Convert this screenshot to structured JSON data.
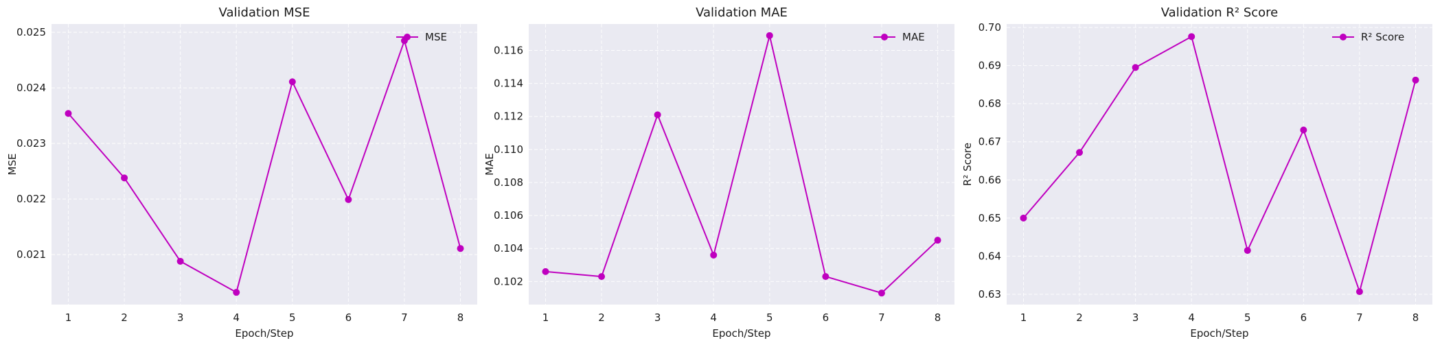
{
  "chart_data": [
    {
      "type": "line",
      "title": "Validation MSE",
      "xlabel": "Epoch/Step",
      "ylabel": "MSE",
      "x": [
        1,
        2,
        3,
        4,
        5,
        6,
        7,
        8
      ],
      "xticks": [
        "1",
        "2",
        "3",
        "4",
        "5",
        "6",
        "7",
        "8"
      ],
      "series": [
        {
          "name": "MSE",
          "color": "#bf00bf",
          "values": [
            0.02354,
            0.02238,
            0.02088,
            0.02032,
            0.02411,
            0.02199,
            0.02485,
            0.02111
          ]
        }
      ],
      "ylim": [
        0.0201,
        0.02515
      ],
      "yticks": [
        0.021,
        0.022,
        0.023,
        0.024,
        0.025
      ],
      "ytick_labels": [
        "0.021",
        "0.022",
        "0.023",
        "0.024",
        "0.025"
      ],
      "grid": true,
      "legend": "top-right"
    },
    {
      "type": "line",
      "title": "Validation MAE",
      "xlabel": "Epoch/Step",
      "ylabel": "MAE",
      "x": [
        1,
        2,
        3,
        4,
        5,
        6,
        7,
        8
      ],
      "xticks": [
        "1",
        "2",
        "3",
        "4",
        "5",
        "6",
        "7",
        "8"
      ],
      "series": [
        {
          "name": "MAE",
          "color": "#bf00bf",
          "values": [
            0.1026,
            0.1023,
            0.1121,
            0.1036,
            0.1169,
            0.1023,
            0.1013,
            0.1045
          ]
        }
      ],
      "ylim": [
        0.1006,
        0.1176
      ],
      "yticks": [
        0.102,
        0.104,
        0.106,
        0.108,
        0.11,
        0.112,
        0.114,
        0.116
      ],
      "ytick_labels": [
        "0.102",
        "0.104",
        "0.106",
        "0.108",
        "0.110",
        "0.112",
        "0.114",
        "0.116"
      ],
      "grid": true,
      "legend": "top-right"
    },
    {
      "type": "line",
      "title": "Validation R² Score",
      "xlabel": "Epoch/Step",
      "ylabel": "R² Score",
      "x": [
        1,
        2,
        3,
        4,
        5,
        6,
        7,
        8
      ],
      "xticks": [
        "1",
        "2",
        "3",
        "4",
        "5",
        "6",
        "7",
        "8"
      ],
      "series": [
        {
          "name": "R² Score",
          "color": "#bf00bf",
          "values": [
            0.65,
            0.6672,
            0.6895,
            0.6976,
            0.6415,
            0.6731,
            0.6307,
            0.6862
          ]
        }
      ],
      "ylim": [
        0.6273,
        0.7009
      ],
      "yticks": [
        0.63,
        0.64,
        0.65,
        0.66,
        0.67,
        0.68,
        0.69,
        0.7
      ],
      "ytick_labels": [
        "0.63",
        "0.64",
        "0.65",
        "0.66",
        "0.67",
        "0.68",
        "0.69",
        "0.70"
      ],
      "grid": true,
      "legend": "top-right"
    }
  ]
}
